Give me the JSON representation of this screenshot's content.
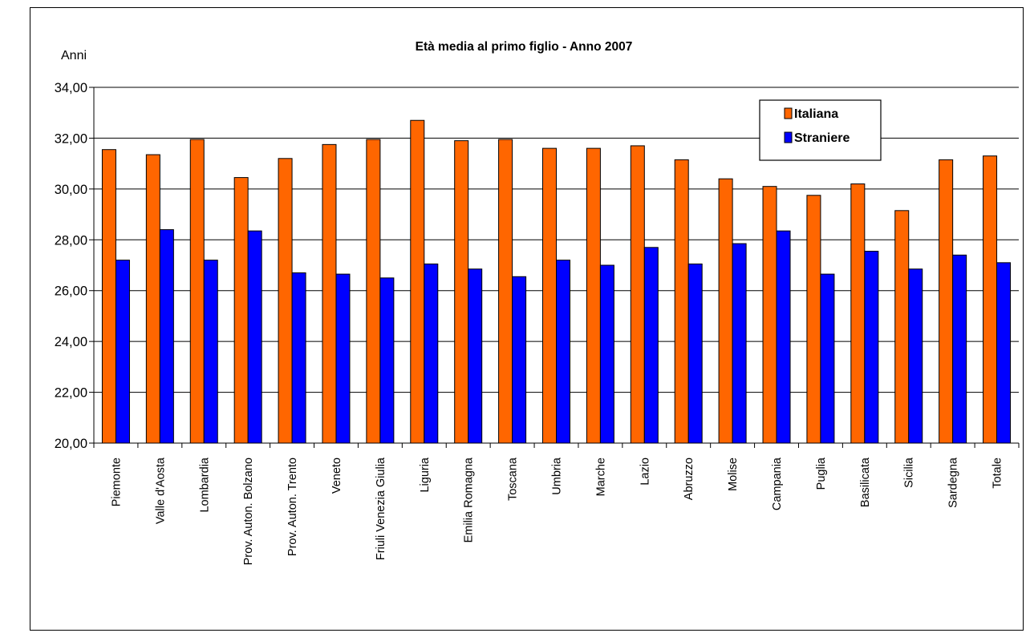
{
  "chart_data": {
    "type": "bar",
    "title": "Età media al primo figlio - Anno 2007",
    "ylabel": "Anni",
    "xlabel": "",
    "ylim": [
      20,
      34
    ],
    "yticks": [
      "20,00",
      "22,00",
      "24,00",
      "26,00",
      "28,00",
      "30,00",
      "32,00",
      "34,00"
    ],
    "grid": true,
    "legend_position": "top-right",
    "categories": [
      "Piemonte",
      "Valle d'Aosta",
      "Lombardia",
      "Prov. Auton. Bolzano",
      "Prov. Auton. Trento",
      "Veneto",
      "Friuli Venezia Giulia",
      "Liguria",
      "Emilia Romagna",
      "Toscana",
      "Umbria",
      "Marche",
      "Lazio",
      "Abruzzo",
      "Molise",
      "Campania",
      "Puglia",
      "Basilicata",
      "Sicilia",
      "Sardegna",
      "Totale"
    ],
    "series": [
      {
        "name": "Italiana",
        "color": "#FF6600",
        "values": [
          31.55,
          31.35,
          31.95,
          30.45,
          31.2,
          31.75,
          31.95,
          32.7,
          31.9,
          31.95,
          31.6,
          31.6,
          31.7,
          31.15,
          30.4,
          30.1,
          29.75,
          30.2,
          29.15,
          31.15,
          31.3
        ]
      },
      {
        "name": "Straniere",
        "color": "#0000FF",
        "values": [
          27.2,
          28.4,
          27.2,
          28.35,
          26.7,
          26.65,
          26.5,
          27.05,
          26.85,
          26.55,
          27.2,
          27.0,
          27.7,
          27.05,
          27.85,
          28.35,
          26.65,
          27.55,
          26.85,
          27.4,
          27.1
        ]
      }
    ]
  }
}
